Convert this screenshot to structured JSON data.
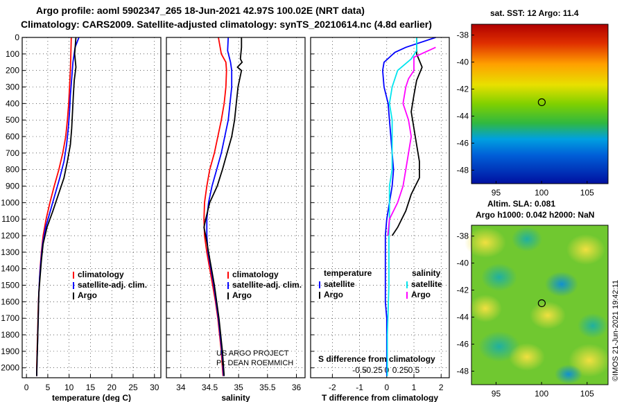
{
  "title_line1": "Argo profile: aoml 5902347_265 18-Jun-2021 42.97S 100.02E (NRT data)",
  "title_line2": "Climatology: CARS2009. Satellite-adjusted climatology: synTS_20210614.nc (4.8d earlier)",
  "watermark": "©IMOS 21-Jun-2021 19:42:11",
  "colors": {
    "climatology": "#ff0000",
    "satellite": "#0000ff",
    "argo": "#000000",
    "sat_salinity": "#00e5ee",
    "argo_salinity": "#ff00ff"
  },
  "chart_data": [
    {
      "type": "line",
      "name": "temperature",
      "xlabel": "temperature (deg C)",
      "xlim": [
        -1,
        31.5
      ],
      "xticks": [
        "0",
        "5",
        "10",
        "15",
        "20",
        "25",
        "30"
      ],
      "ylim": [
        0,
        2060
      ],
      "yticks": [
        "0",
        "100",
        "200",
        "300",
        "400",
        "500",
        "600",
        "700",
        "800",
        "900",
        "1000",
        "1100",
        "1200",
        "1300",
        "1400",
        "1500",
        "1600",
        "1700",
        "1800",
        "1900",
        "2000"
      ],
      "legend": [
        "climatology",
        "satellite-adj. clim.",
        "Argo"
      ],
      "series": [
        {
          "name": "climatology",
          "color": "#ff0000",
          "points": [
            [
              10.5,
              0
            ],
            [
              10.4,
              100
            ],
            [
              10.3,
              200
            ],
            [
              10.1,
              300
            ],
            [
              9.9,
              400
            ],
            [
              9.6,
              500
            ],
            [
              9.2,
              600
            ],
            [
              8.5,
              700
            ],
            [
              7.6,
              800
            ],
            [
              6.5,
              900
            ],
            [
              5.5,
              1000
            ],
            [
              4.6,
              1100
            ],
            [
              3.9,
              1200
            ],
            [
              3.5,
              1300
            ],
            [
              3.2,
              1400
            ],
            [
              3.0,
              1500
            ],
            [
              2.8,
              1600
            ],
            [
              2.7,
              1700
            ],
            [
              2.6,
              1800
            ],
            [
              2.5,
              1900
            ],
            [
              2.4,
              2000
            ],
            [
              2.4,
              2050
            ]
          ]
        },
        {
          "name": "satellite-adj. clim.",
          "color": "#0000ff",
          "points": [
            [
              12.3,
              0
            ],
            [
              11.4,
              60
            ],
            [
              10.9,
              150
            ],
            [
              10.6,
              250
            ],
            [
              10.3,
              350
            ],
            [
              10.1,
              450
            ],
            [
              9.8,
              550
            ],
            [
              9.4,
              650
            ],
            [
              8.8,
              750
            ],
            [
              7.8,
              850
            ],
            [
              6.7,
              950
            ],
            [
              5.6,
              1050
            ],
            [
              4.5,
              1150
            ],
            [
              3.8,
              1250
            ],
            [
              3.4,
              1350
            ],
            [
              3.1,
              1450
            ],
            [
              2.9,
              1550
            ],
            [
              2.8,
              1650
            ],
            [
              2.7,
              1750
            ],
            [
              2.6,
              1850
            ],
            [
              2.5,
              1950
            ],
            [
              2.4,
              2050
            ]
          ]
        },
        {
          "name": "Argo",
          "color": "#000000",
          "points": [
            [
              11.6,
              0
            ],
            [
              11.3,
              100
            ],
            [
              11.6,
              180
            ],
            [
              11.2,
              260
            ],
            [
              11.0,
              350
            ],
            [
              10.8,
              450
            ],
            [
              10.6,
              550
            ],
            [
              10.3,
              650
            ],
            [
              9.6,
              750
            ],
            [
              8.8,
              850
            ],
            [
              7.5,
              950
            ],
            [
              6.2,
              1050
            ],
            [
              4.8,
              1150
            ],
            [
              3.9,
              1250
            ],
            [
              3.5,
              1350
            ],
            [
              3.2,
              1450
            ],
            [
              2.9,
              1550
            ],
            [
              2.8,
              1650
            ],
            [
              2.7,
              1750
            ],
            [
              2.6,
              1850
            ],
            [
              2.5,
              1950
            ],
            [
              2.4,
              2050
            ]
          ]
        }
      ]
    },
    {
      "type": "line",
      "name": "salinity",
      "xlabel": "salinity",
      "xlim": [
        33.75,
        36.15
      ],
      "xticks": [
        "34",
        "34.5",
        "35",
        "35.5",
        "36"
      ],
      "ylim": [
        0,
        2060
      ],
      "legend": [
        "climatology",
        "satellite-adj. clim.",
        "Argo"
      ],
      "annotations": [
        "US ARGO PROJECT",
        "PI: DEAN ROEMMICH"
      ],
      "series": [
        {
          "name": "climatology",
          "color": "#ff0000",
          "points": [
            [
              34.65,
              0
            ],
            [
              34.7,
              100
            ],
            [
              34.78,
              150
            ],
            [
              34.79,
              200
            ],
            [
              34.78,
              300
            ],
            [
              34.75,
              400
            ],
            [
              34.7,
              500
            ],
            [
              34.64,
              600
            ],
            [
              34.58,
              700
            ],
            [
              34.5,
              800
            ],
            [
              34.45,
              900
            ],
            [
              34.41,
              1000
            ],
            [
              34.4,
              1100
            ],
            [
              34.41,
              1200
            ],
            [
              34.45,
              1300
            ],
            [
              34.5,
              1400
            ],
            [
              34.55,
              1500
            ],
            [
              34.6,
              1600
            ],
            [
              34.64,
              1700
            ],
            [
              34.67,
              1800
            ],
            [
              34.7,
              1900
            ],
            [
              34.72,
              2000
            ],
            [
              34.73,
              2050
            ]
          ]
        },
        {
          "name": "satellite-adj. clim.",
          "color": "#0000ff",
          "points": [
            [
              34.82,
              0
            ],
            [
              34.81,
              80
            ],
            [
              34.86,
              150
            ],
            [
              34.88,
              200
            ],
            [
              34.88,
              300
            ],
            [
              34.85,
              400
            ],
            [
              34.82,
              500
            ],
            [
              34.76,
              600
            ],
            [
              34.7,
              700
            ],
            [
              34.62,
              800
            ],
            [
              34.54,
              900
            ],
            [
              34.48,
              1000
            ],
            [
              34.45,
              1100
            ],
            [
              34.45,
              1200
            ],
            [
              34.47,
              1300
            ],
            [
              34.52,
              1400
            ],
            [
              34.57,
              1500
            ],
            [
              34.61,
              1600
            ],
            [
              34.65,
              1700
            ],
            [
              34.68,
              1800
            ],
            [
              34.71,
              1900
            ],
            [
              34.73,
              2000
            ],
            [
              34.74,
              2050
            ]
          ]
        },
        {
          "name": "Argo",
          "color": "#000000",
          "points": [
            [
              35.05,
              0
            ],
            [
              35.05,
              60
            ],
            [
              35.03,
              130
            ],
            [
              35.06,
              150
            ],
            [
              34.98,
              180
            ],
            [
              35.05,
              200
            ],
            [
              34.99,
              300
            ],
            [
              34.96,
              400
            ],
            [
              34.93,
              500
            ],
            [
              34.88,
              600
            ],
            [
              34.8,
              700
            ],
            [
              34.72,
              800
            ],
            [
              34.63,
              900
            ],
            [
              34.5,
              1000
            ],
            [
              34.43,
              1100
            ],
            [
              34.4,
              1150
            ],
            [
              34.43,
              1200
            ],
            [
              34.48,
              1300
            ],
            [
              34.53,
              1400
            ],
            [
              34.58,
              1500
            ],
            [
              34.62,
              1600
            ],
            [
              34.66,
              1700
            ],
            [
              34.69,
              1800
            ],
            [
              34.72,
              1900
            ],
            [
              34.74,
              2000
            ],
            [
              34.75,
              2050
            ]
          ]
        }
      ]
    },
    {
      "type": "line",
      "name": "differences",
      "xlabel": "T difference from climatology",
      "xlim": [
        -2.8,
        2.3
      ],
      "xticks": [
        "-2",
        "-1",
        "0",
        "1",
        "2"
      ],
      "secondary_xlabel": "S difference from climatology",
      "secondary_xticks": [
        "-0.5",
        "-0.25",
        "0",
        "0.25",
        "0.5"
      ],
      "ylim": [
        0,
        2060
      ],
      "legend": [
        "temperature",
        "satellite",
        "Argo",
        "salinity",
        "satellite",
        "Argo"
      ],
      "series": [
        {
          "name": "temperature satellite",
          "color": "#0000ff",
          "points": [
            [
              1.8,
              0
            ],
            [
              0.7,
              60
            ],
            [
              0.3,
              90
            ],
            [
              -0.1,
              150
            ],
            [
              -0.15,
              200
            ],
            [
              -0.1,
              300
            ],
            [
              0.05,
              400
            ],
            [
              0.1,
              500
            ],
            [
              0.15,
              600
            ],
            [
              0.2,
              700
            ],
            [
              0.25,
              800
            ],
            [
              0.2,
              900
            ],
            [
              0.1,
              1000
            ],
            [
              0.0,
              1100
            ],
            [
              -0.05,
              1200
            ],
            [
              -0.05,
              1300
            ],
            [
              -0.05,
              1400
            ],
            [
              -0.05,
              1500
            ],
            [
              -0.05,
              1600
            ],
            [
              0.0,
              1700
            ],
            [
              0.0,
              2050
            ]
          ]
        },
        {
          "name": "temperature Argo",
          "color": "#000000",
          "points": [
            [
              1.1,
              0
            ],
            [
              1.1,
              100
            ],
            [
              1.3,
              180
            ],
            [
              1.1,
              260
            ],
            [
              1.0,
              350
            ],
            [
              0.9,
              450
            ],
            [
              1.0,
              550
            ],
            [
              1.1,
              650
            ],
            [
              1.2,
              750
            ],
            [
              1.2,
              850
            ],
            [
              0.9,
              950
            ],
            [
              0.7,
              1050
            ],
            [
              0.4,
              1150
            ],
            [
              0.2,
              1200
            ]
          ]
        },
        {
          "name": "salinity satellite",
          "color": "#00e5ee",
          "points": [
            [
              0.55,
              0
            ],
            [
              0.55,
              80
            ],
            [
              0.45,
              130
            ],
            [
              0.2,
              200
            ],
            [
              0.1,
              300
            ],
            [
              0.05,
              400
            ],
            [
              0.1,
              500
            ],
            [
              0.1,
              600
            ],
            [
              0.1,
              700
            ],
            [
              0.1,
              800
            ],
            [
              0.05,
              900
            ],
            [
              0.05,
              1000
            ],
            [
              0.05,
              1100
            ],
            [
              0.04,
              1200
            ],
            [
              0.04,
              1300
            ],
            [
              0.04,
              1400
            ],
            [
              0.04,
              1500
            ],
            [
              0.03,
              1600
            ],
            [
              0.02,
              1700
            ],
            [
              0.01,
              1800
            ],
            [
              0.01,
              1900
            ],
            [
              0.01,
              2050
            ]
          ]
        },
        {
          "name": "salinity Argo",
          "color": "#ff00ff",
          "points": [
            [
              0.9,
              60
            ],
            [
              0.5,
              120
            ],
            [
              0.5,
              200
            ],
            [
              0.4,
              250
            ],
            [
              0.35,
              300
            ],
            [
              0.3,
              400
            ],
            [
              0.4,
              500
            ],
            [
              0.45,
              600
            ],
            [
              0.4,
              700
            ],
            [
              0.35,
              800
            ],
            [
              0.3,
              900
            ],
            [
              0.2,
              1000
            ],
            [
              0.05,
              1100
            ],
            [
              0.02,
              1200
            ]
          ]
        }
      ]
    },
    {
      "type": "heatmap",
      "name": "sst-map",
      "title": "sat. SST: 12 Argo: 11.4",
      "xticks": [
        "95",
        "100",
        "105"
      ],
      "yticks": [
        "-38",
        "-40",
        "-42",
        "-44",
        "-46",
        "-48"
      ],
      "xlim": [
        92.3,
        107.3
      ],
      "ylim": [
        -49,
        -37.2
      ],
      "marker": [
        100.02,
        -42.97
      ]
    },
    {
      "type": "heatmap",
      "name": "sla-map",
      "title_line1": "Altim. SLA: 0.081",
      "title_line2": "Argo h1000: 0.042 h2000: NaN",
      "xticks": [
        "95",
        "100",
        "105"
      ],
      "yticks": [
        "-38",
        "-40",
        "-42",
        "-44",
        "-46",
        "-48"
      ],
      "xlim": [
        92.3,
        107.3
      ],
      "ylim": [
        -49,
        -37.2
      ],
      "marker": [
        100.02,
        -42.97
      ]
    }
  ]
}
